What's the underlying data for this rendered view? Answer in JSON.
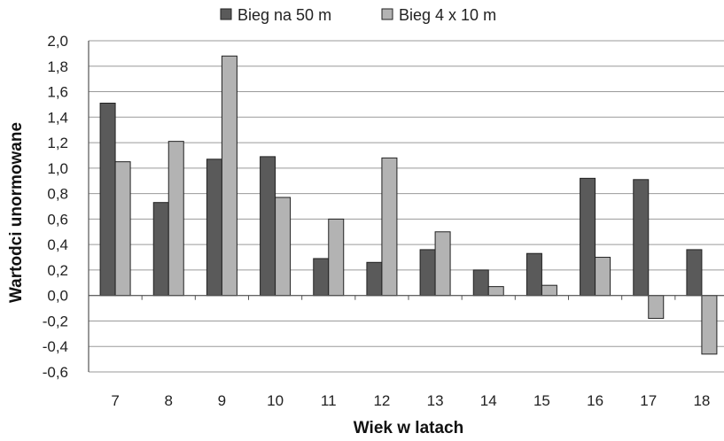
{
  "chart_data": {
    "type": "bar",
    "title": "",
    "xlabel": "Wiek w latach",
    "ylabel": "Wartodci unormowane",
    "categories": [
      "7",
      "8",
      "9",
      "10",
      "11",
      "12",
      "13",
      "14",
      "15",
      "16",
      "17",
      "18"
    ],
    "series": [
      {
        "name": "Bieg na 50 m",
        "color": "#5a5a5a",
        "values": [
          1.51,
          0.73,
          1.07,
          1.09,
          0.29,
          0.26,
          0.36,
          0.2,
          0.33,
          0.92,
          0.91,
          0.36
        ]
      },
      {
        "name": "Bieg 4 x 10 m",
        "color": "#b3b3b3",
        "values": [
          1.05,
          1.21,
          1.88,
          0.77,
          0.6,
          1.08,
          0.5,
          0.07,
          0.08,
          0.3,
          -0.18,
          -0.46
        ]
      }
    ],
    "ylim": [
      -0.6,
      2.0
    ],
    "yticks": [
      "-0,6",
      "-0,4",
      "-0,2",
      "0,0",
      "0,2",
      "0,4",
      "0,6",
      "0,8",
      "1,0",
      "1,2",
      "1,4",
      "1,6",
      "1,8",
      "2,0"
    ],
    "grid": true,
    "legend_position": "top"
  }
}
